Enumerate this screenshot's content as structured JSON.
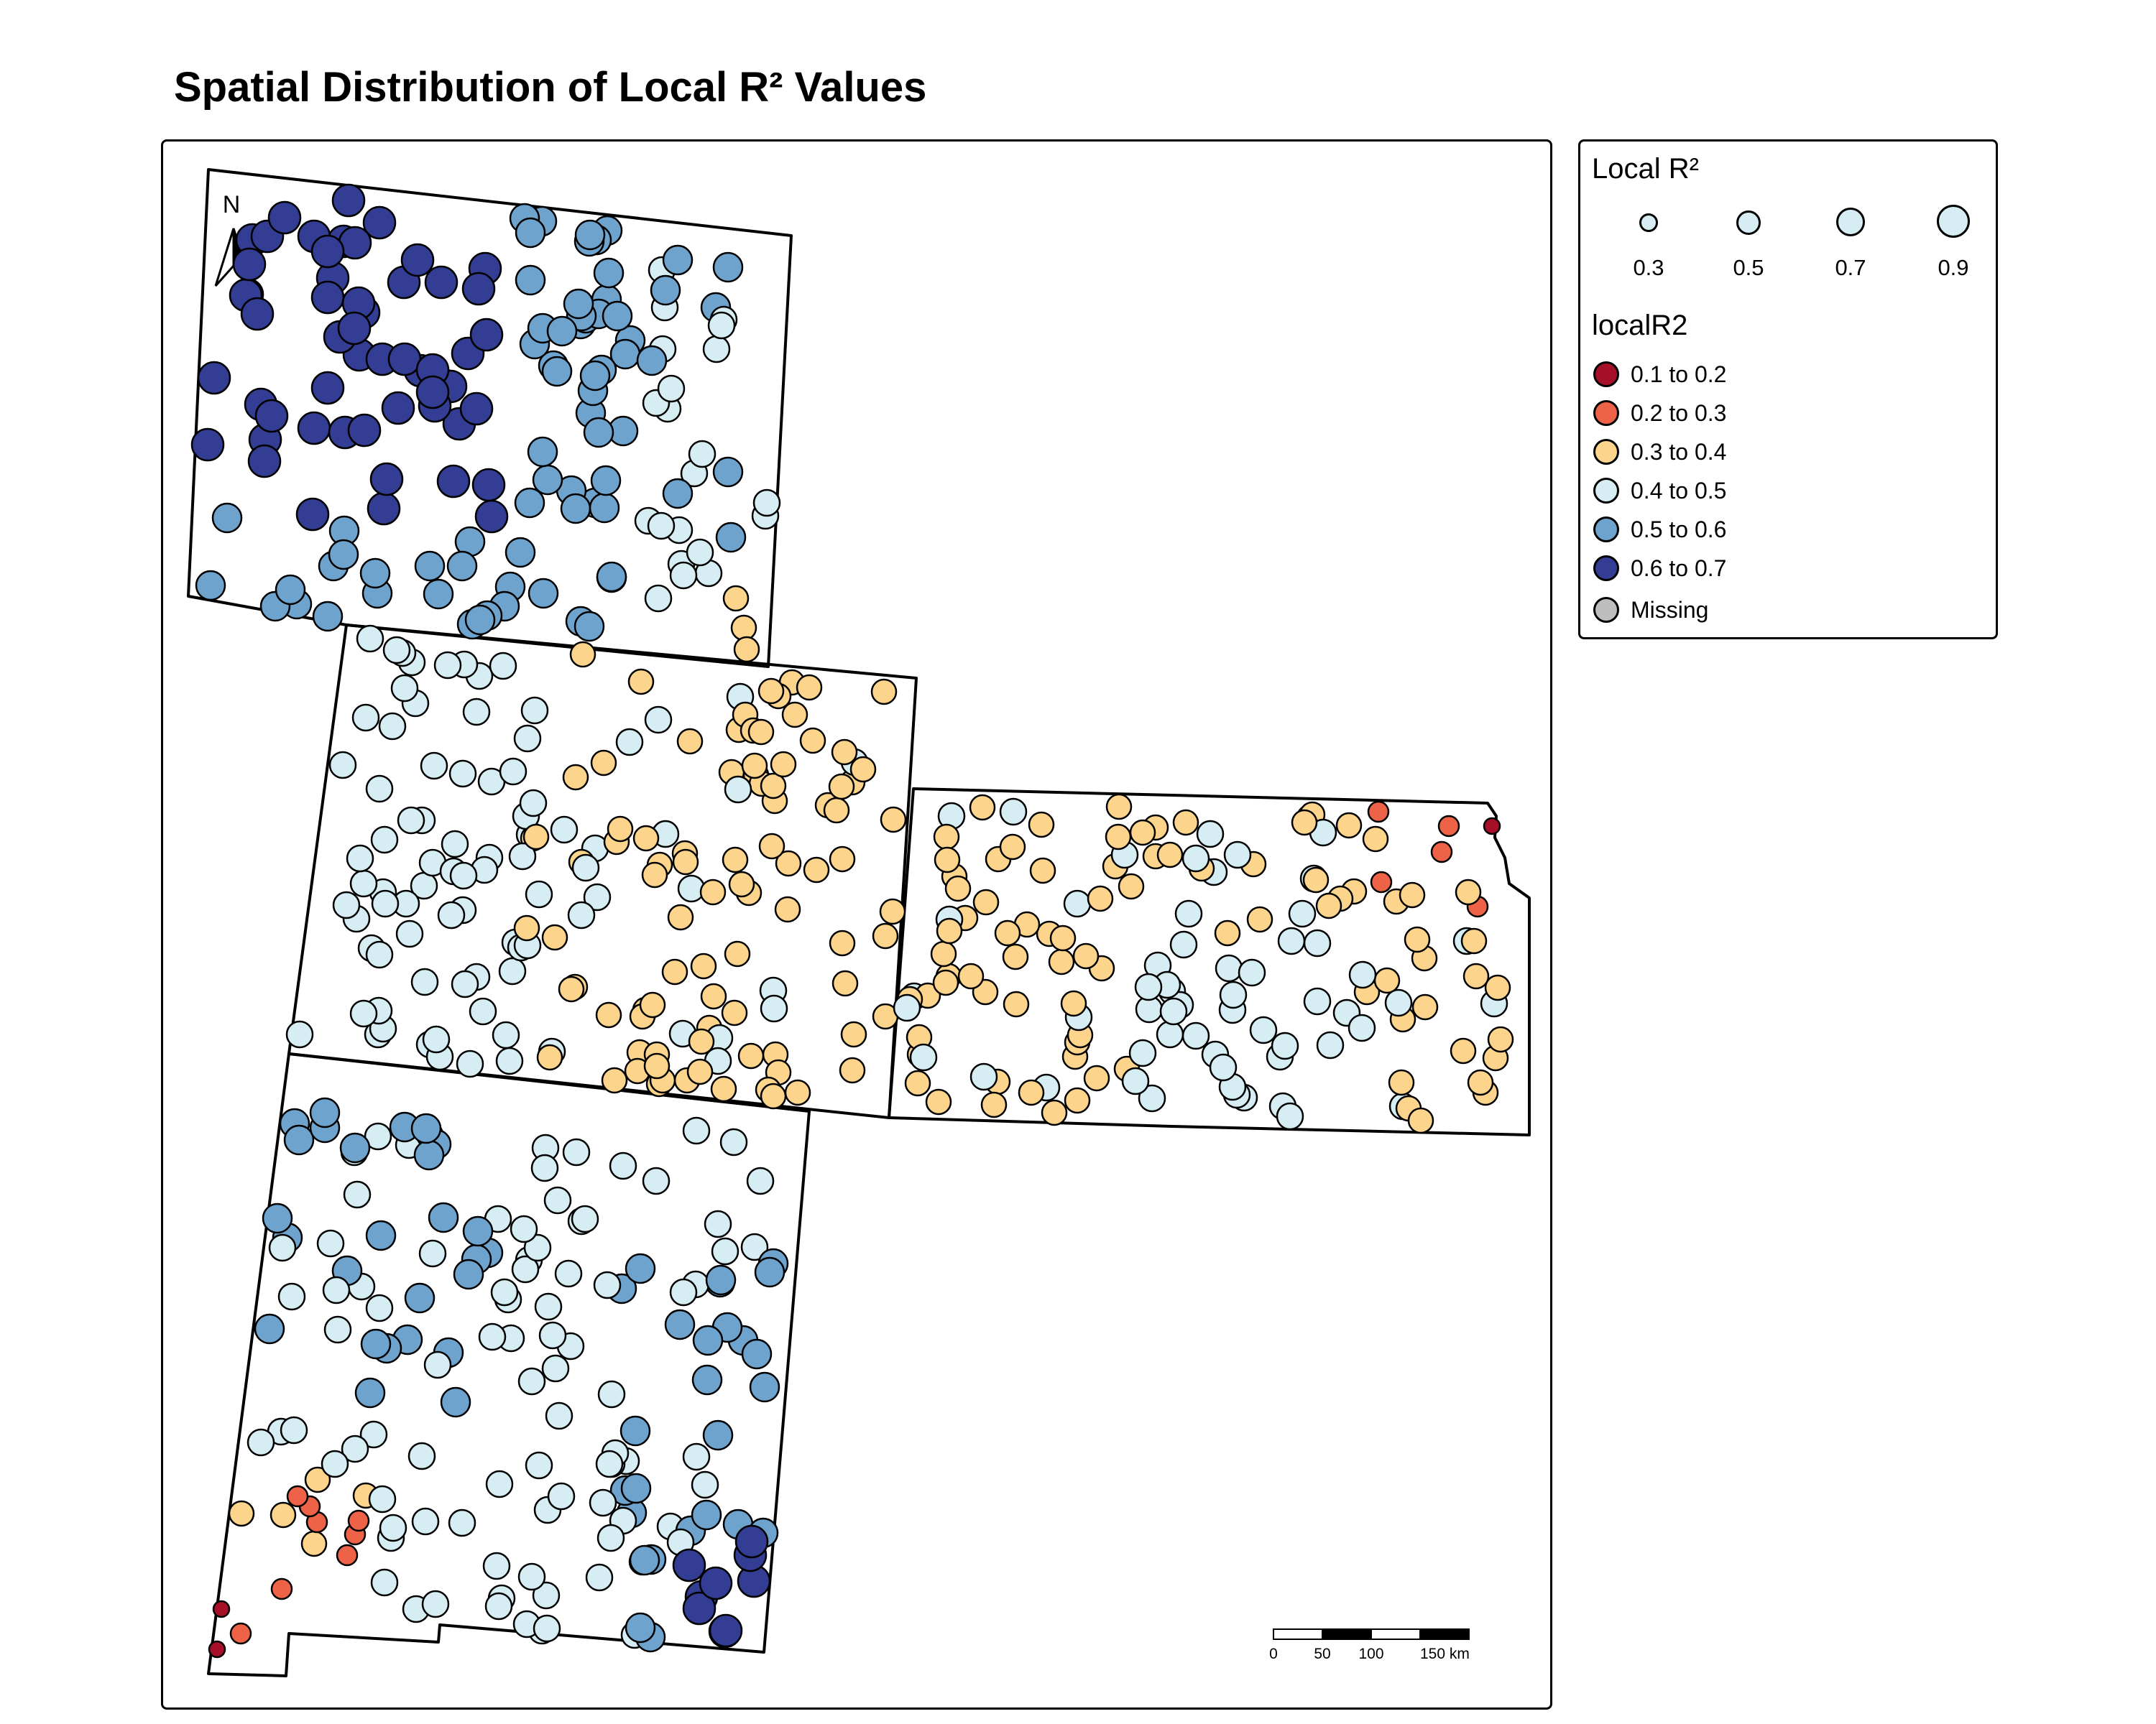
{
  "title": "Spatial Distribution of Local R² Values",
  "north_arrow": {
    "label": "N",
    "icon": "north-arrow-icon"
  },
  "legend": {
    "size_title": "Local R²",
    "size_items": [
      {
        "label": "0.3",
        "value": 0.3
      },
      {
        "label": "0.5",
        "value": 0.5
      },
      {
        "label": "0.7",
        "value": 0.7
      },
      {
        "label": "0.9",
        "value": 0.9
      }
    ],
    "color_title": "localR2",
    "color_items": [
      {
        "label": "0.1 to 0.2",
        "color": "#a50f28"
      },
      {
        "label": "0.2 to 0.3",
        "color": "#ee6347"
      },
      {
        "label": "0.3 to 0.4",
        "color": "#fdd48c"
      },
      {
        "label": "0.4 to 0.5",
        "color": "#d6eef3"
      },
      {
        "label": "0.5 to 0.6",
        "color": "#6ea3cd"
      },
      {
        "label": "0.6 to 0.7",
        "color": "#323d93"
      },
      {
        "label": "Missing",
        "color": "#bebebe"
      }
    ]
  },
  "scale_bar": {
    "labels": [
      "0",
      "50",
      "100",
      "150 km"
    ]
  },
  "colors": {
    "class_1": "#a50f28",
    "class_2": "#ee6347",
    "class_3": "#fdd48c",
    "class_4": "#d6eef3",
    "class_5": "#6ea3cd",
    "class_6": "#323d93",
    "missing": "#bebebe"
  }
}
